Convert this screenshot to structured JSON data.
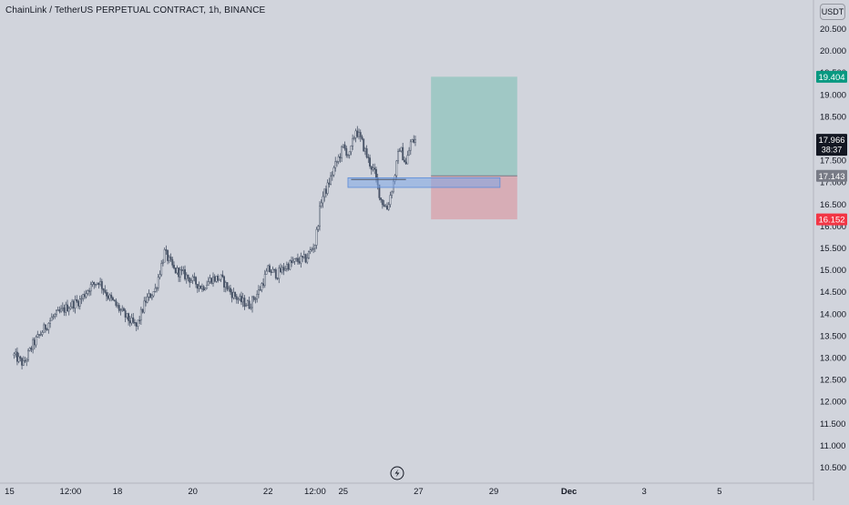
{
  "header": {
    "symbol_title": "ChainLink / TetherUS PERPETUAL CONTRACT, 1h, BINANCE",
    "currency": "USDT"
  },
  "colors": {
    "background": "#d1d4dc",
    "candle": "#4a5568",
    "profit_zone": "#8fc4bd",
    "loss_zone": "#d8a3ad",
    "profit_label": "#089981",
    "loss_label": "#f23645",
    "entry_label": "#787b86",
    "last_price_label": "#131722",
    "blue_zone": "#7ea6e6"
  },
  "chart_data": {
    "type": "candlestick",
    "title": "",
    "xlabel": "",
    "ylabel": "",
    "ylim": [
      10.25,
      21.0
    ],
    "y_ticks": [
      10.5,
      11.0,
      11.5,
      12.0,
      12.5,
      13.0,
      13.5,
      14.0,
      14.5,
      15.0,
      15.5,
      16.0,
      16.5,
      17.0,
      17.5,
      18.0,
      18.5,
      19.0,
      19.5,
      20.0,
      20.5
    ],
    "y_tick_labels": [
      "10.500",
      "11.000",
      "11.500",
      "12.000",
      "12.500",
      "13.000",
      "13.500",
      "14.000",
      "14.500",
      "15.000",
      "15.500",
      "16.000",
      "16.500",
      "17.000",
      "17.500",
      "18.000",
      "18.500",
      "19.000",
      "19.500",
      "20.000",
      "20.500"
    ],
    "x_tick_labels": [
      "15",
      "12:00",
      "18",
      "20",
      "22",
      "12:00",
      "25",
      "27",
      "29",
      "Dec",
      "3",
      "5"
    ],
    "x_tick_hours": [
      -6,
      36,
      66,
      114,
      162,
      192,
      210,
      258,
      306,
      354,
      402,
      450
    ],
    "x_range_hours": [
      -9,
      510
    ],
    "close_path": [
      [
        0,
        13.05
      ],
      [
        6,
        12.85
      ],
      [
        12,
        13.3
      ],
      [
        18,
        13.6
      ],
      [
        24,
        13.9
      ],
      [
        30,
        14.05
      ],
      [
        36,
        14.2
      ],
      [
        42,
        14.3
      ],
      [
        48,
        14.6
      ],
      [
        54,
        14.75
      ],
      [
        60,
        14.4
      ],
      [
        66,
        14.15
      ],
      [
        72,
        13.9
      ],
      [
        78,
        13.7
      ],
      [
        84,
        14.3
      ],
      [
        90,
        14.55
      ],
      [
        96,
        15.4
      ],
      [
        102,
        15.0
      ],
      [
        108,
        14.9
      ],
      [
        114,
        14.75
      ],
      [
        120,
        14.6
      ],
      [
        126,
        14.8
      ],
      [
        132,
        14.8
      ],
      [
        138,
        14.5
      ],
      [
        144,
        14.3
      ],
      [
        150,
        14.2
      ],
      [
        156,
        14.5
      ],
      [
        162,
        15.0
      ],
      [
        168,
        14.9
      ],
      [
        174,
        15.1
      ],
      [
        180,
        15.2
      ],
      [
        186,
        15.25
      ],
      [
        192,
        15.6
      ],
      [
        196,
        16.6
      ],
      [
        200,
        16.9
      ],
      [
        204,
        17.3
      ],
      [
        210,
        17.8
      ],
      [
        214,
        17.6
      ],
      [
        218,
        18.2
      ],
      [
        222,
        17.9
      ],
      [
        226,
        17.5
      ],
      [
        230,
        17.2
      ],
      [
        234,
        16.6
      ],
      [
        238,
        16.4
      ],
      [
        242,
        17.0
      ],
      [
        246,
        17.8
      ],
      [
        250,
        17.4
      ],
      [
        253,
        17.9
      ],
      [
        256,
        17.96
      ]
    ],
    "position": {
      "type": "long",
      "entry": 17.143,
      "take_profit": 19.404,
      "stop_loss": 16.152,
      "start_hour": 266,
      "end_hour": 321
    },
    "blue_zone": {
      "low": 16.88,
      "high": 17.1,
      "start_hour": 213,
      "end_hour": 310
    },
    "price_labels": [
      {
        "name": "take-profit-label",
        "value": 19.404,
        "text": "19.404",
        "color": "#089981"
      },
      {
        "name": "last-price-label",
        "value": 17.966,
        "text": "17.966",
        "sub": "38:37",
        "color": "#131722"
      },
      {
        "name": "entry-label",
        "value": 17.143,
        "text": "17.143",
        "color": "#787b86"
      },
      {
        "name": "stop-loss-label",
        "value": 16.152,
        "text": "16.152",
        "color": "#f23645"
      }
    ]
  }
}
